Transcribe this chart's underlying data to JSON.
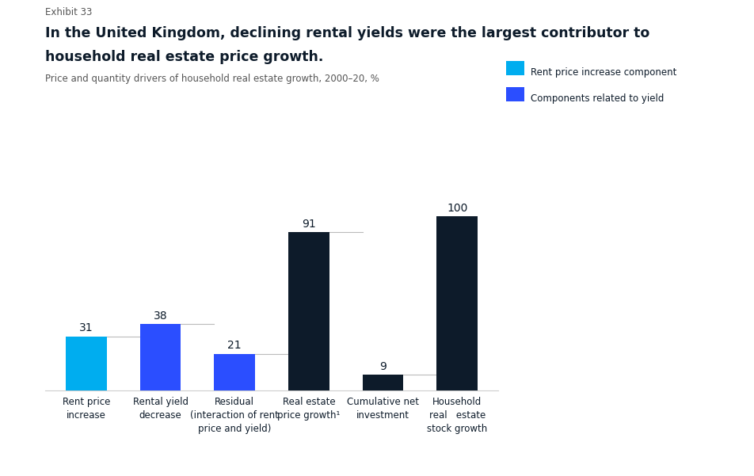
{
  "exhibit_label": "Exhibit 33",
  "title_line1": "In the United Kingdom, declining rental yields were the largest contributor to",
  "title_line2": "household real estate price growth.",
  "subtitle": "Price and quantity drivers of household real estate growth, 2000–20, %",
  "categories": [
    "Rent price\nincrease",
    "Rental yield\ndecrease",
    "Residual\n(interaction of rent\nprice and yield)",
    "Real estate\nprice growth¹",
    "Cumulative net\ninvestment",
    "Household\nreal   estate\nstock growth"
  ],
  "values": [
    31,
    38,
    21,
    91,
    9,
    100
  ],
  "bar_colors": [
    "#00ADEF",
    "#2B4EFF",
    "#2B4EFF",
    "#0D1B2A",
    "#0D1B2A",
    "#0D1B2A"
  ],
  "legend_labels": [
    "Rent price increase component",
    "Components related to yield"
  ],
  "legend_colors": [
    "#00ADEF",
    "#2B4EFF"
  ],
  "ylim": [
    0,
    115
  ],
  "bar_width": 0.55,
  "value_label_color": "#0D1B2A",
  "title_color": "#0D1B2A",
  "subtitle_color": "#555555",
  "exhibit_color": "#555555",
  "connector_color": "#BBBBBB",
  "background_color": "#FFFFFF"
}
